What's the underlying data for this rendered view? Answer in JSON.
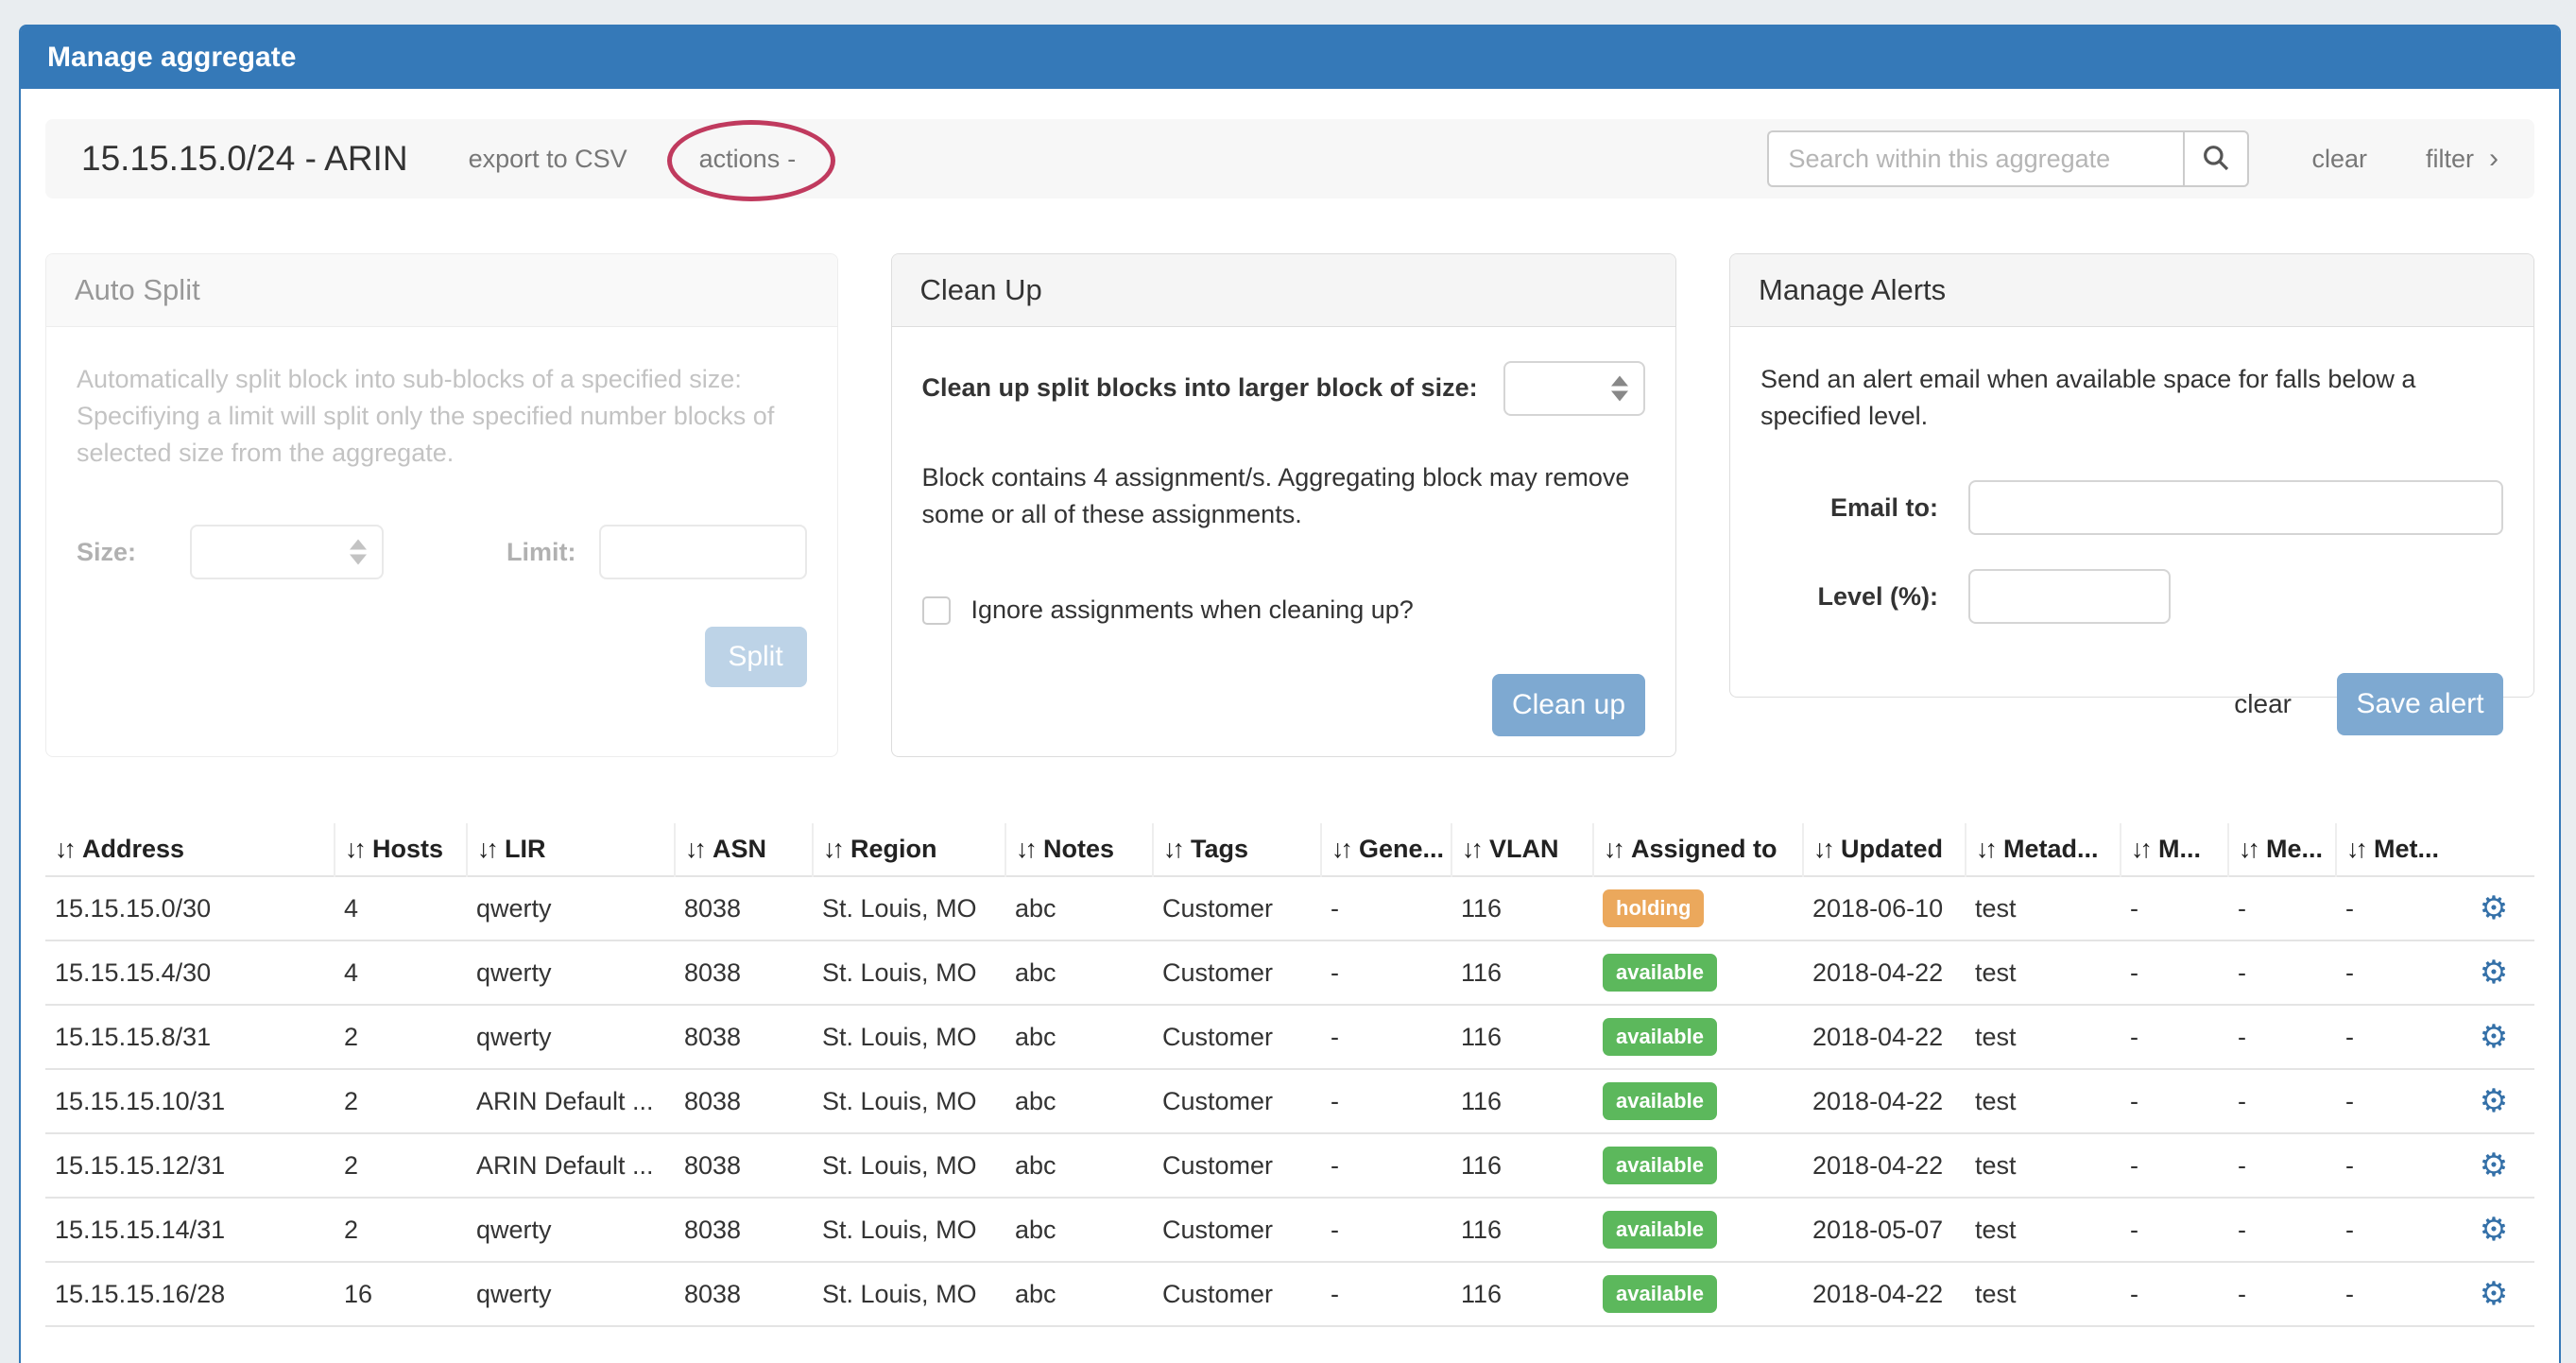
{
  "window": {
    "title": "Manage aggregate"
  },
  "toolbar": {
    "aggregate_title": "15.15.15.0/24 - ARIN",
    "export_csv_label": "export to CSV",
    "actions_label": "actions",
    "actions_caret": "-",
    "search_placeholder": "Search within this aggregate",
    "clear_label": "clear",
    "filter_label": "filter",
    "filter_chevron": "›"
  },
  "panels": {
    "auto_split": {
      "title": "Auto Split",
      "description": "Automatically split block into sub-blocks of a specified size: Specifiying a limit will split only the specified number blocks of selected size from the aggregate.",
      "size_label": "Size:",
      "limit_label": "Limit:",
      "split_button": "Split",
      "disabled": true
    },
    "clean_up": {
      "title": "Clean Up",
      "size_label": "Clean up split blocks into larger block of size:",
      "note": "Block contains 4 assignment/s. Aggregating block may remove some or all of these assignments.",
      "checkbox_label": "Ignore assignments when cleaning up?",
      "checkbox_checked": false,
      "button": "Clean up"
    },
    "manage_alerts": {
      "title": "Manage Alerts",
      "description": "Send an alert email when available space for falls below a specified level.",
      "email_label": "Email to:",
      "email_value": "",
      "level_label": "Level (%):",
      "level_value": "",
      "clear_label": "clear",
      "save_button": "Save alert"
    }
  },
  "table": {
    "sort_icon": "↓↑",
    "columns": [
      "Address",
      "Hosts",
      "LIR",
      "ASN",
      "Region",
      "Notes",
      "Tags",
      "Gene...",
      "VLAN",
      "Assigned to",
      "Updated",
      "Metad...",
      "M...",
      "Me...",
      "Met..."
    ],
    "status_column_index": 9,
    "rows": [
      [
        "15.15.15.0/30",
        "4",
        "qwerty",
        "8038",
        "St. Louis, MO",
        "abc",
        "Customer",
        "-",
        "116",
        "holding",
        "2018-06-10",
        "test",
        "-",
        "-",
        "-"
      ],
      [
        "15.15.15.4/30",
        "4",
        "qwerty",
        "8038",
        "St. Louis, MO",
        "abc",
        "Customer",
        "-",
        "116",
        "available",
        "2018-04-22",
        "test",
        "-",
        "-",
        "-"
      ],
      [
        "15.15.15.8/31",
        "2",
        "qwerty",
        "8038",
        "St. Louis, MO",
        "abc",
        "Customer",
        "-",
        "116",
        "available",
        "2018-04-22",
        "test",
        "-",
        "-",
        "-"
      ],
      [
        "15.15.15.10/31",
        "2",
        "ARIN Default ...",
        "8038",
        "St. Louis, MO",
        "abc",
        "Customer",
        "-",
        "116",
        "available",
        "2018-04-22",
        "test",
        "-",
        "-",
        "-"
      ],
      [
        "15.15.15.12/31",
        "2",
        "ARIN Default ...",
        "8038",
        "St. Louis, MO",
        "abc",
        "Customer",
        "-",
        "116",
        "available",
        "2018-04-22",
        "test",
        "-",
        "-",
        "-"
      ],
      [
        "15.15.15.14/31",
        "2",
        "qwerty",
        "8038",
        "St. Louis, MO",
        "abc",
        "Customer",
        "-",
        "116",
        "available",
        "2018-05-07",
        "test",
        "-",
        "-",
        "-"
      ],
      [
        "15.15.15.16/28",
        "16",
        "qwerty",
        "8038",
        "St. Louis, MO",
        "abc",
        "Customer",
        "-",
        "116",
        "available",
        "2018-04-22",
        "test",
        "-",
        "-",
        "-"
      ]
    ]
  },
  "colors": {
    "header_blue": "#3579b8",
    "button_blue": "#7ea9d1",
    "badge_holding": "#eba85c",
    "badge_available": "#5cb85c",
    "gear_blue": "#3470a8",
    "annotation_ellipse": "#c03a5e",
    "page_background": "#e9edf0"
  }
}
